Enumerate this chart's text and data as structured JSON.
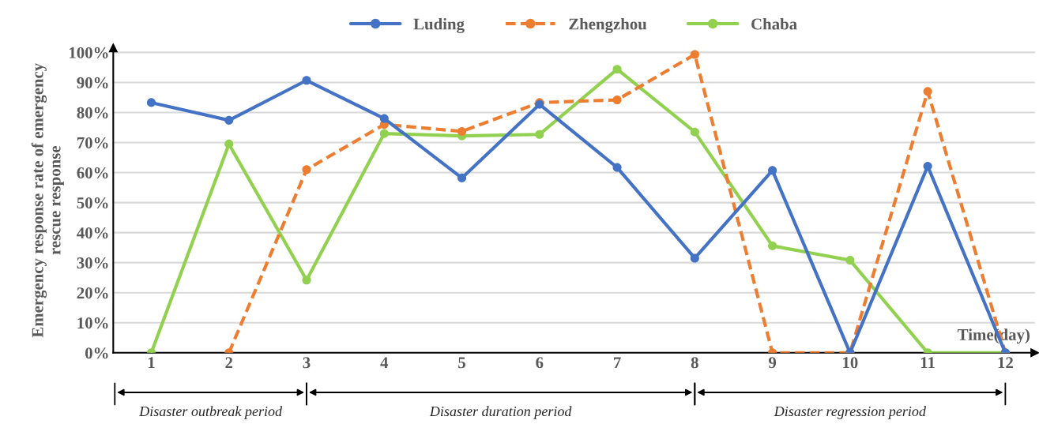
{
  "chart_data": {
    "type": "line",
    "categories": [
      "1",
      "2",
      "3",
      "4",
      "5",
      "6",
      "7",
      "8",
      "9",
      "10",
      "11",
      "12"
    ],
    "series": [
      {
        "name": "Luding",
        "color": "#4472c4",
        "line_style": "solid",
        "values": [
          83.3,
          77.4,
          90.7,
          78,
          58.2,
          82.7,
          61.7,
          31.5,
          60.7,
          0,
          62.1,
          0
        ]
      },
      {
        "name": "Zhengzhou",
        "color": "#ed7d31",
        "line_style": "dashed",
        "values": [
          null,
          0,
          61,
          76,
          73.7,
          83.3,
          84.2,
          99.3,
          0,
          0,
          87,
          0
        ]
      },
      {
        "name": "Chaba",
        "color": "#92d050",
        "line_style": "solid",
        "values": [
          0,
          69.5,
          24.2,
          73,
          72.2,
          72.7,
          94.4,
          73.5,
          35.6,
          30.8,
          0,
          0
        ]
      }
    ],
    "ylabel": "Emergency response rate of emergency\nrescue response",
    "xlabel": "Time(day)",
    "ylim": [
      0,
      101.5
    ],
    "yticks": [
      {
        "value": 0,
        "label": "0%"
      },
      {
        "value": 10,
        "label": "10%"
      },
      {
        "value": 20,
        "label": "20%"
      },
      {
        "value": 30,
        "label": "30%"
      },
      {
        "value": 40,
        "label": "40%"
      },
      {
        "value": 50,
        "label": "50%"
      },
      {
        "value": 60,
        "label": "60%"
      },
      {
        "value": 70,
        "label": "70%"
      },
      {
        "value": 80,
        "label": "80%"
      },
      {
        "value": 90,
        "label": "90%"
      },
      {
        "value": 100,
        "label": "100%"
      }
    ],
    "annotations": [
      "Disaster outbreak period",
      "Disaster duration period",
      "Disaster regression period"
    ],
    "grid": "y",
    "legend": "top",
    "marker": "circle"
  }
}
